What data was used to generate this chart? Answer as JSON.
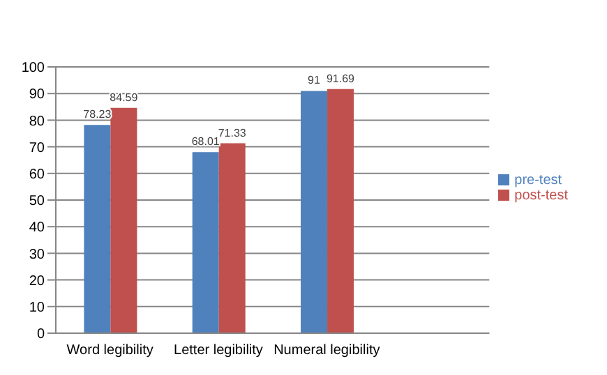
{
  "chart_data": {
    "type": "bar",
    "categories": [
      "Word legibility",
      "Letter legibility",
      "Numeral legibility",
      null
    ],
    "series": [
      {
        "name": "pre-test",
        "color": "#4f81bd",
        "values": [
          78.23,
          68.01,
          91,
          null
        ]
      },
      {
        "name": "post-test",
        "color": "#c0504d",
        "values": [
          84.59,
          71.33,
          91.69,
          null
        ]
      }
    ],
    "ylim": [
      0,
      100
    ],
    "yticks": [
      0,
      10,
      20,
      30,
      40,
      50,
      60,
      70,
      80,
      90,
      100
    ],
    "grid": "y",
    "legend": "right",
    "data_labels": true
  }
}
